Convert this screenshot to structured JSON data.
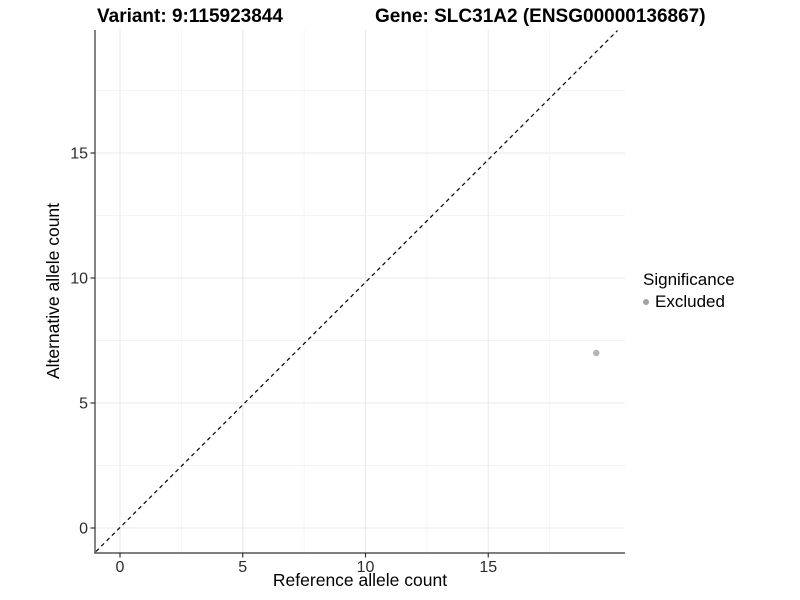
{
  "chart_data": {
    "type": "scatter",
    "title_variant": "Variant: 9:115923844",
    "title_gene": "Gene: SLC31A2 (ENSG00000136867)",
    "xlabel": "Reference allele count",
    "ylabel": "Alternative allele count",
    "x_ticks": [
      0,
      5,
      10,
      15
    ],
    "y_ticks": [
      0,
      5,
      10,
      15
    ],
    "xlim": [
      -1,
      20.5
    ],
    "ylim": [
      -1,
      19.9
    ],
    "grid": {
      "major_every": 5,
      "minor_every": 2.5,
      "visible": true
    },
    "reference_line": {
      "type": "identity",
      "slope": 1,
      "intercept": 0,
      "style": "dashed",
      "color": "#000000"
    },
    "series": [
      {
        "name": "Excluded",
        "color": "#b4b4b4",
        "points": [
          {
            "x": 19.4,
            "y": 7
          }
        ]
      }
    ],
    "legend": {
      "position": "right",
      "title": "Significance",
      "items": [
        {
          "label": "Excluded",
          "color": "#a3a3a3"
        }
      ]
    }
  },
  "colors": {
    "background": "#ffffff",
    "grid_major": "#e9e9e9",
    "grid_minor": "#f3f3f3",
    "axis_line": "#333333",
    "tick_label": "#2b2b2b",
    "title_text": "#000000"
  }
}
